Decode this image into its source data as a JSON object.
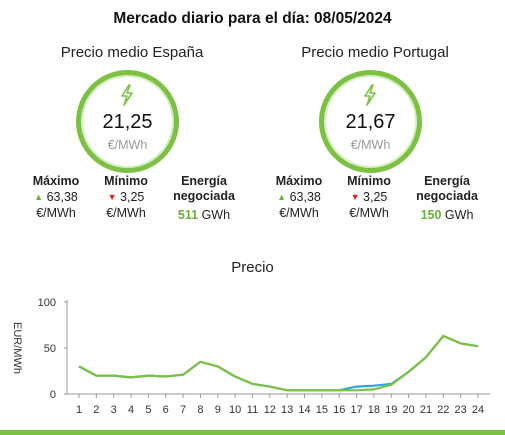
{
  "title": "Mercado diario para el día: 08/05/2024",
  "spain": {
    "name": "Precio medio España",
    "price": "21,25",
    "unit": "€/MWh",
    "max_label": "Máximo",
    "max_value": "63,38",
    "min_label": "Mínimo",
    "min_value": "3,25",
    "stat_unit": "€/MWh",
    "energy_label_1": "Energía",
    "energy_label_2": "negociada",
    "energy_value": "511",
    "energy_unit": "GWh"
  },
  "portugal": {
    "name": "Precio medio Portugal",
    "price": "21,67",
    "unit": "€/MWh",
    "max_label": "Máximo",
    "max_value": "63,38",
    "min_label": "Mínimo",
    "min_value": "3,25",
    "stat_unit": "€/MWh",
    "energy_label_1": "Energía",
    "energy_label_2": "negociada",
    "energy_value": "150",
    "energy_unit": "GWh"
  },
  "colors": {
    "accent": "#7dc142",
    "spain_line": "#7dc142",
    "portugal_line": "#2aa7d6",
    "up": "#6ab03a",
    "down": "#e02020"
  },
  "icons": {
    "gauge": "lightning-bolt-icon"
  },
  "chart_data": {
    "type": "line",
    "title": "Precio",
    "ylabel": "EUR/MWh",
    "xlabel": "",
    "ylim": [
      0,
      100
    ],
    "yticks": [
      0,
      50,
      100
    ],
    "x": [
      1,
      2,
      3,
      4,
      5,
      6,
      7,
      8,
      9,
      10,
      11,
      12,
      13,
      14,
      15,
      16,
      17,
      18,
      19,
      20,
      21,
      22,
      23,
      24
    ],
    "series": [
      {
        "values": [
          30,
          20,
          20,
          18,
          20,
          19,
          21,
          35,
          30,
          19,
          11,
          8,
          4,
          4,
          4,
          4,
          4,
          5,
          10,
          24,
          40,
          63,
          55,
          52
        ]
      },
      {
        "values": [
          30,
          20,
          20,
          18,
          20,
          19,
          21,
          35,
          30,
          19,
          11,
          8,
          4,
          4,
          4,
          4,
          8,
          9,
          11,
          24,
          40,
          63,
          55,
          52
        ]
      }
    ],
    "grid": false,
    "legend": "none"
  }
}
